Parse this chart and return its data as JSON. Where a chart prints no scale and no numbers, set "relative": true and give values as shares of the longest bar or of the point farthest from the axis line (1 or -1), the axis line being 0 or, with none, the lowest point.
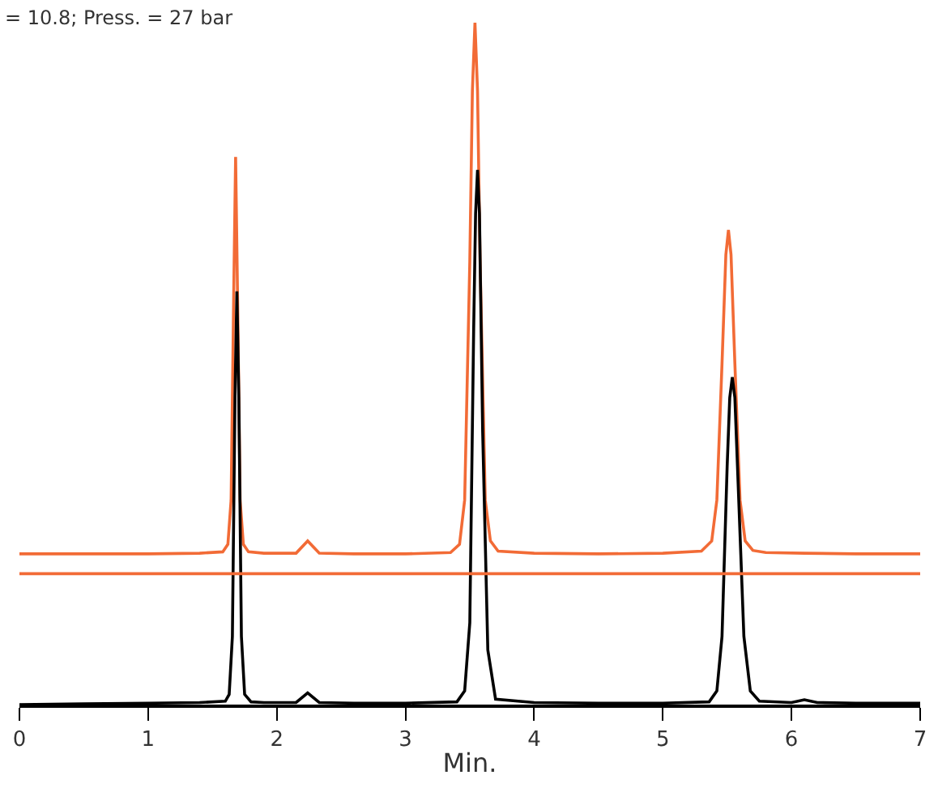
{
  "chart_data": {
    "type": "line",
    "relative": true,
    "xlabel": "Min.",
    "xlim": [
      0,
      7
    ],
    "xticks": [
      0,
      1,
      2,
      3,
      4,
      5,
      6,
      7
    ],
    "marker": "none",
    "line_style": "solid",
    "annotations": [
      "= 10.8; Press. = 27 bar"
    ],
    "ref_lines": [
      {
        "axis": "y",
        "value": 0.192,
        "label": null,
        "color": "#f26b36"
      }
    ],
    "series": [
      {
        "color": "#f26b36",
        "x": [
          0,
          0.5,
          1,
          1.4,
          1.58,
          1.62,
          1.645,
          1.665,
          1.68,
          1.695,
          1.715,
          1.74,
          1.78,
          1.9,
          2.15,
          2.24,
          2.33,
          2.6,
          3.0,
          3.35,
          3.42,
          3.46,
          3.5,
          3.52,
          3.54,
          3.56,
          3.58,
          3.62,
          3.66,
          3.72,
          4.0,
          4.5,
          5.0,
          5.3,
          5.38,
          5.42,
          5.46,
          5.49,
          5.51,
          5.53,
          5.56,
          5.6,
          5.64,
          5.7,
          5.8,
          6.1,
          6.5,
          7
        ],
        "values": [
          0.221,
          0.221,
          0.221,
          0.222,
          0.224,
          0.235,
          0.3,
          0.6,
          0.803,
          0.6,
          0.3,
          0.235,
          0.224,
          0.222,
          0.222,
          0.24,
          0.222,
          0.221,
          0.221,
          0.223,
          0.235,
          0.3,
          0.65,
          0.9,
          1.0,
          0.9,
          0.65,
          0.3,
          0.24,
          0.225,
          0.222,
          0.221,
          0.222,
          0.225,
          0.24,
          0.3,
          0.5,
          0.66,
          0.696,
          0.66,
          0.5,
          0.3,
          0.24,
          0.226,
          0.223,
          0.222,
          0.221,
          0.221
        ]
      },
      {
        "color": "#000000",
        "x": [
          0,
          0.5,
          1,
          1.4,
          1.6,
          1.63,
          1.655,
          1.675,
          1.69,
          1.705,
          1.725,
          1.75,
          1.8,
          1.9,
          2.15,
          2.24,
          2.33,
          2.6,
          3.0,
          3.4,
          3.46,
          3.5,
          3.53,
          3.545,
          3.56,
          3.575,
          3.6,
          3.64,
          3.7,
          4.0,
          4.5,
          5.0,
          5.36,
          5.42,
          5.46,
          5.5,
          5.52,
          5.54,
          5.56,
          5.59,
          5.63,
          5.68,
          5.75,
          6.0,
          6.1,
          6.2,
          6.5,
          7
        ],
        "values": [
          0.0,
          0.001,
          0.002,
          0.003,
          0.005,
          0.015,
          0.1,
          0.45,
          0.606,
          0.45,
          0.1,
          0.015,
          0.004,
          0.003,
          0.003,
          0.017,
          0.003,
          0.002,
          0.002,
          0.004,
          0.02,
          0.12,
          0.55,
          0.72,
          0.784,
          0.72,
          0.4,
          0.08,
          0.008,
          0.003,
          0.002,
          0.002,
          0.004,
          0.02,
          0.1,
          0.35,
          0.45,
          0.48,
          0.45,
          0.3,
          0.1,
          0.02,
          0.005,
          0.003,
          0.007,
          0.003,
          0.002,
          0.002
        ]
      }
    ]
  }
}
